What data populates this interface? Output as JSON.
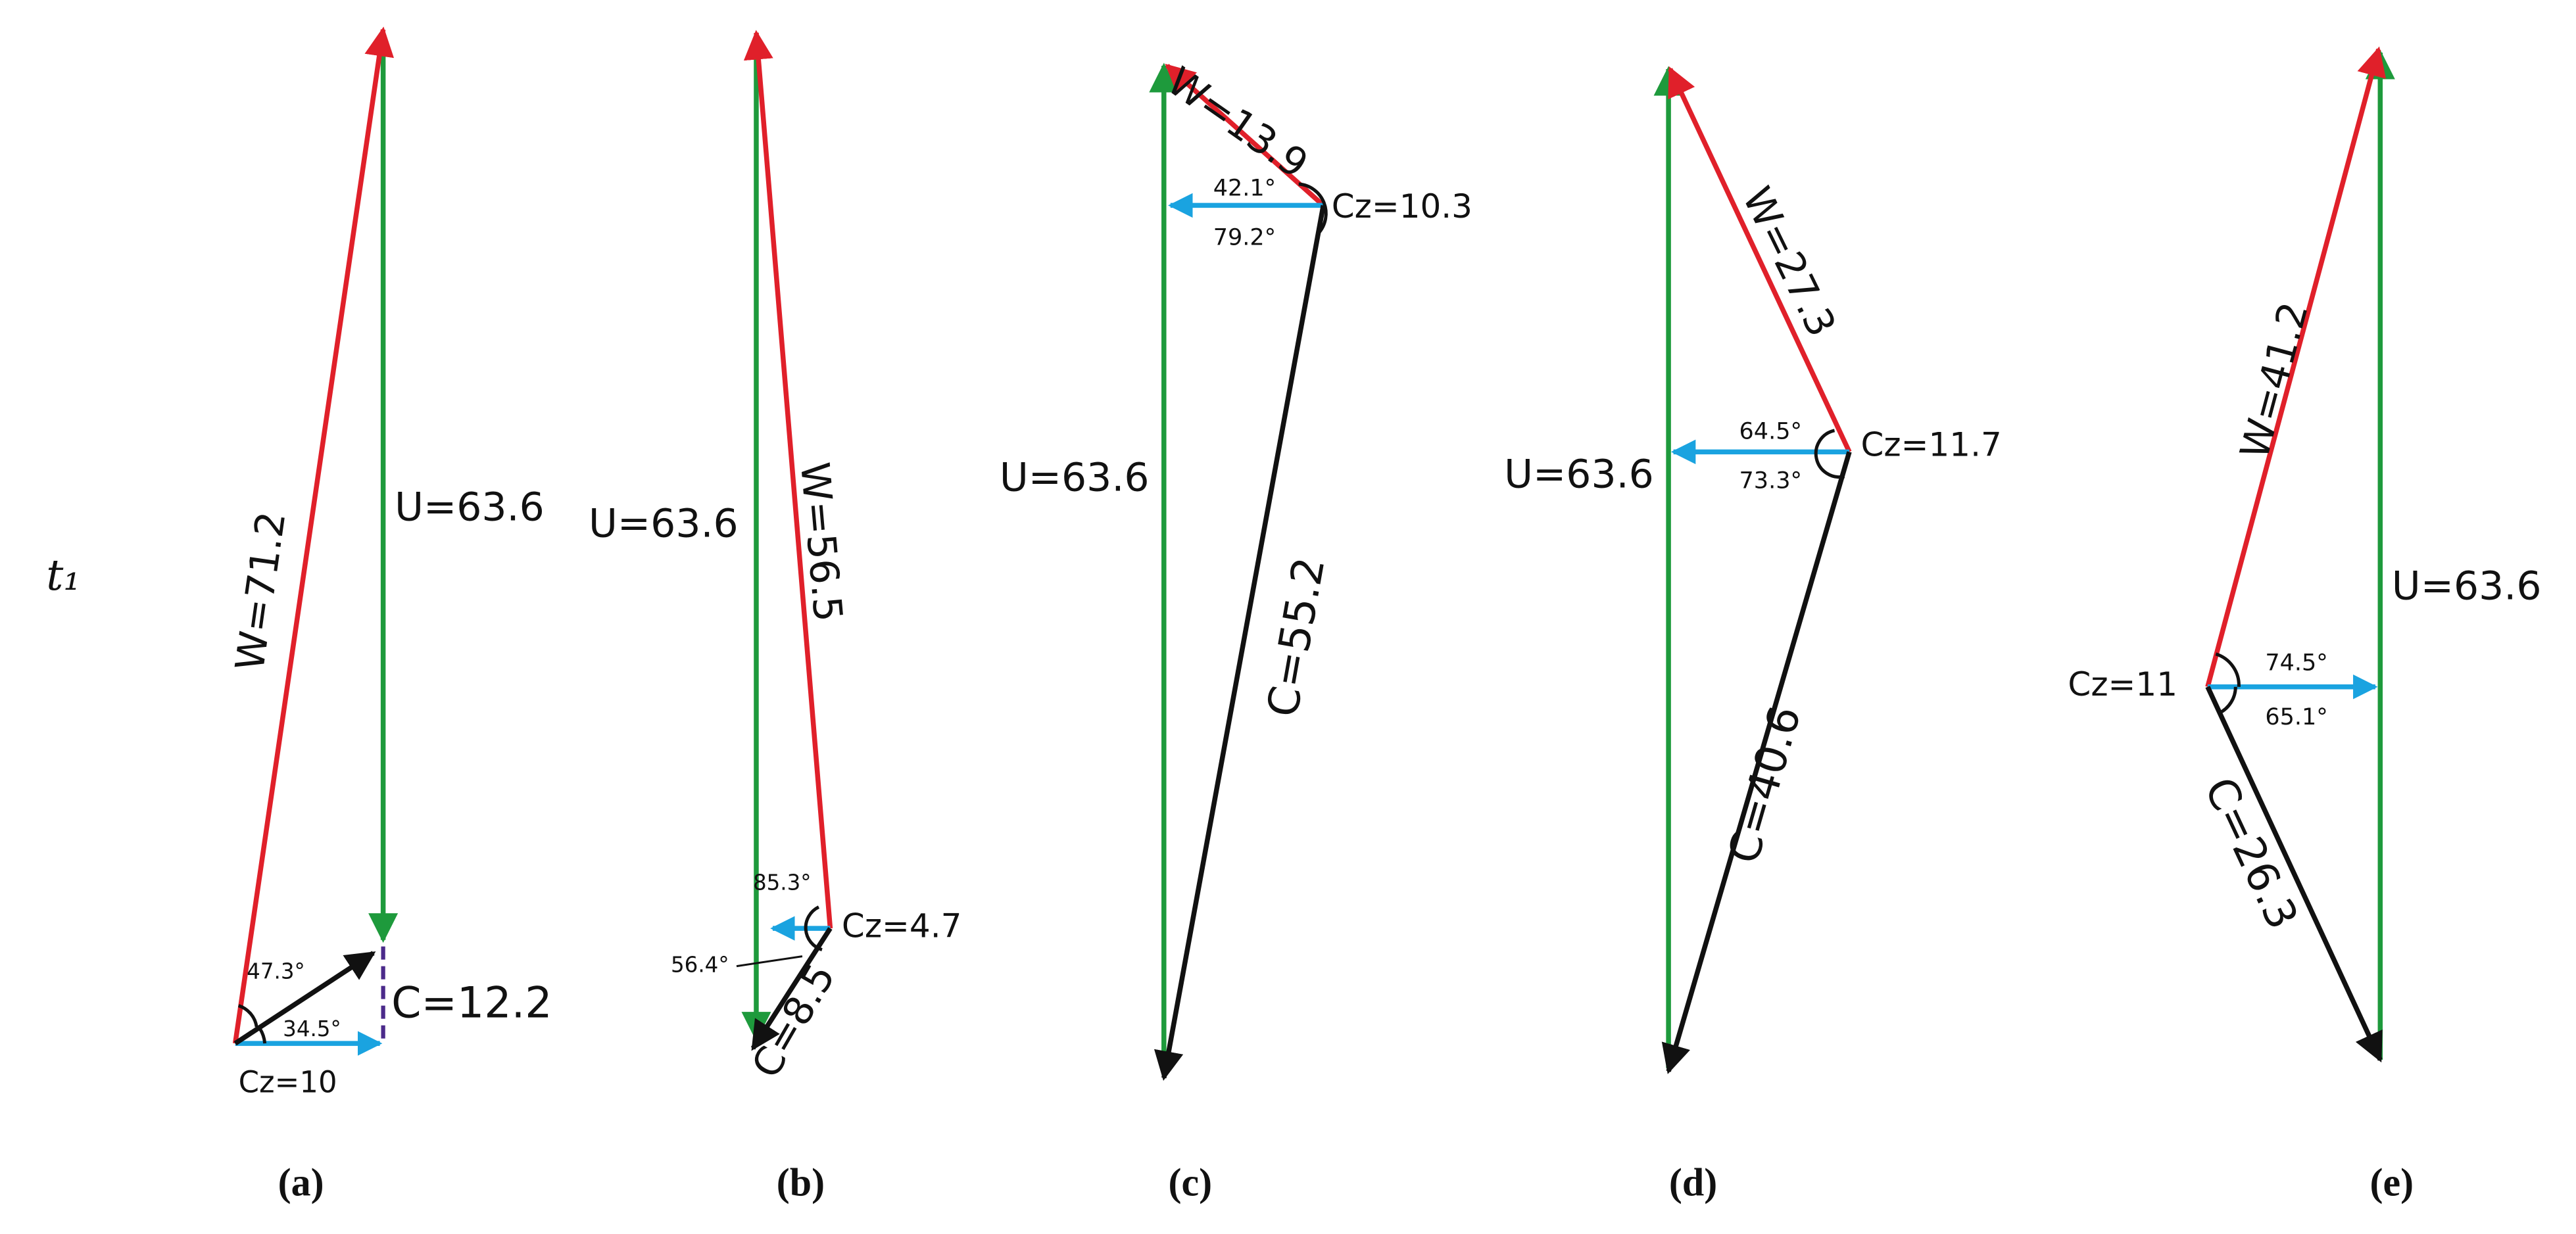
{
  "side_label": "t₁",
  "panels": [
    {
      "label": "(a)",
      "u": "U=63.6",
      "w": "W=71.2",
      "c": "C=12.2",
      "cz": "Cz=10",
      "angles": [
        "47.3°",
        "34.5°"
      ]
    },
    {
      "label": "(b)",
      "u": "U=63.6",
      "w": "W=56.5",
      "c": "C=8.5",
      "cz": "Cz=4.7",
      "angles": [
        "85.3°",
        "56.4°"
      ]
    },
    {
      "label": "(c)",
      "u": "U=63.6",
      "w": "W=13.9",
      "c": "C=55.2",
      "cz": "Cz=10.3",
      "angles": [
        "42.1°",
        "79.2°"
      ]
    },
    {
      "label": "(d)",
      "u": "U=63.6",
      "w": "W=27.3",
      "c": "C=40.6",
      "cz": "Cz=11.7",
      "angles": [
        "64.5°",
        "73.3°"
      ]
    },
    {
      "label": "(e)",
      "u": "U=63.6",
      "w": "W=41.2",
      "c": "C=26.3",
      "cz": "Cz=11",
      "angles": [
        "74.5°",
        "65.1°"
      ]
    }
  ]
}
